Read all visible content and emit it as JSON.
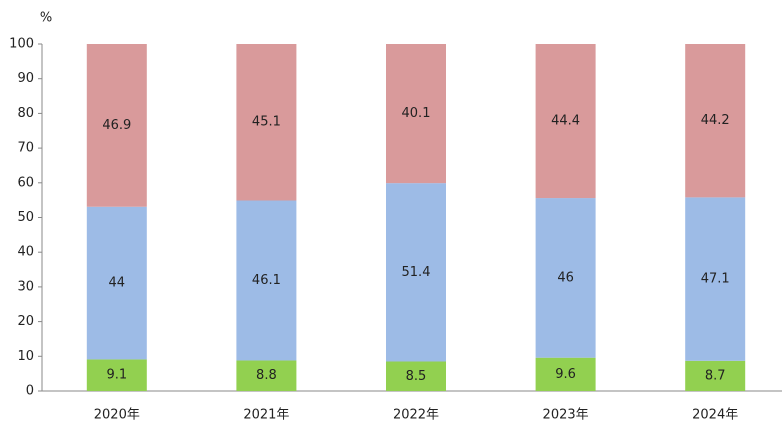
{
  "chart_data": {
    "type": "stacked_bar",
    "y_unit": "%",
    "categories": [
      "2020年",
      "2021年",
      "2022年",
      "2023年",
      "2024年"
    ],
    "series": [
      {
        "color": "#92d050",
        "values": [
          9.1,
          8.8,
          8.5,
          9.6,
          8.7
        ]
      },
      {
        "color": "#9dbbe6",
        "values": [
          44,
          46.1,
          51.4,
          46,
          47.1
        ]
      },
      {
        "color": "#d99a9b",
        "values": [
          46.9,
          45.1,
          40.1,
          44.4,
          44.2
        ]
      }
    ],
    "ylim": [
      0,
      100
    ],
    "yticks": [
      0,
      10,
      20,
      30,
      40,
      50,
      60,
      70,
      80,
      90,
      100
    ]
  }
}
